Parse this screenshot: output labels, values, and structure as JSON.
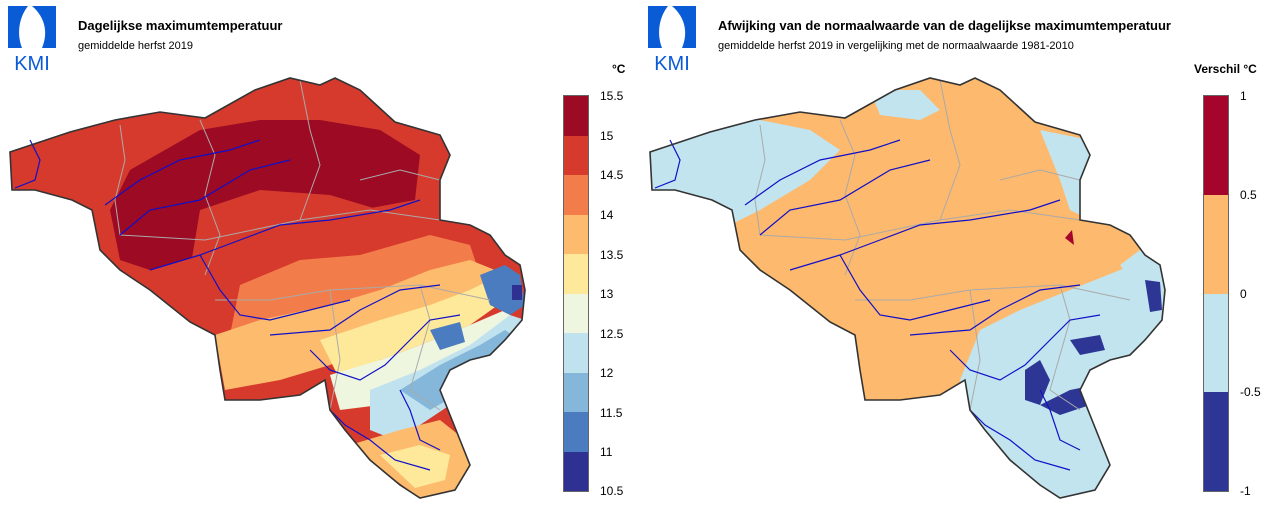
{
  "colors": {
    "temp_scale": [
      "#9c0a24",
      "#d63a2c",
      "#f27d4a",
      "#fdbb6d",
      "#fee99b",
      "#eef6e0",
      "#c0e2ee",
      "#84b7d9",
      "#4a7cbf",
      "#2e3192"
    ],
    "anom_scale": [
      "#a5052b",
      "#fdb96d",
      "#c2e4ef",
      "#2e3695"
    ],
    "border": "#333333",
    "province_border": "#aaaaaa",
    "river": "#1010c8",
    "logo": "#0a5bd6"
  },
  "left": {
    "logo_text": "KMI",
    "title": "Dagelijkse maximumtemperatuur",
    "subtitle": "gemiddelde herfst 2019",
    "legend_unit": "°C",
    "legend_ticks": [
      "15.5",
      "15",
      "14.5",
      "14",
      "13.5",
      "13",
      "12.5",
      "12",
      "11.5",
      "11",
      "10.5"
    ]
  },
  "right": {
    "logo_text": "KMI",
    "title": "Afwijking van de normaalwaarde van de dagelijkse maximumtemperatuur",
    "subtitle": "gemiddelde herfst 2019 in vergelijking met de normaalwaarde 1981-2010",
    "legend_unit": "Verschil °C",
    "legend_ticks": [
      "1",
      "0.5",
      "0",
      "-0.5",
      "-1"
    ]
  }
}
